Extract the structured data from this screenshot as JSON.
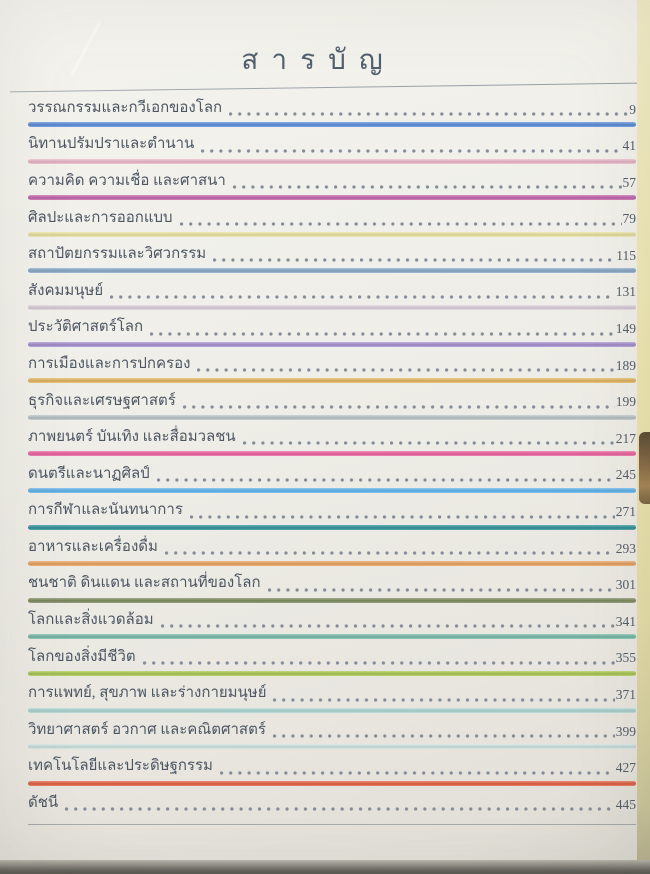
{
  "page": {
    "title": "สารบัญ",
    "entries": [
      {
        "label": "วรรณกรรมและกวีเอกของโลก",
        "page": "9",
        "color": "#5b8ede"
      },
      {
        "label": "นิทานปรัมปราและตำนาน",
        "page": "41",
        "color": "#eeb9cb"
      },
      {
        "label": "ความคิด ความเชื่อ และศาสนา",
        "page": "57",
        "color": "#c765ae"
      },
      {
        "label": "ศิลปะและการออกแบบ",
        "page": "79",
        "color": "#ece5a2"
      },
      {
        "label": "สถาปัตยกรรมและวิศวกรรม",
        "page": "115",
        "color": "#8aaacb"
      },
      {
        "label": "สังคมมนุษย์",
        "page": "131",
        "color": "#ded2dc"
      },
      {
        "label": "ประวัติศาสตร์โลก",
        "page": "149",
        "color": "#a891d3"
      },
      {
        "label": "การเมืองและการปกครอง",
        "page": "189",
        "color": "#e7b75f"
      },
      {
        "label": "ธุรกิจและเศรษฐศาสตร์",
        "page": "199",
        "color": "#bcc5c9"
      },
      {
        "label": "ภาพยนตร์ บันเทิง และสื่อมวลชน",
        "page": "217",
        "color": "#ef639f"
      },
      {
        "label": "ดนตรีและนาฏศิลป์",
        "page": "245",
        "color": "#61b5ef"
      },
      {
        "label": "การกีฬาและนันทนาการ",
        "page": "271",
        "color": "#2e939c"
      },
      {
        "label": "อาหารและเครื่องดื่ม",
        "page": "293",
        "color": "#eca360"
      },
      {
        "label": "ชนชาติ ดินแดน และสถานที่ของโลก",
        "page": "301",
        "color": "#7f8c5f"
      },
      {
        "label": "โลกและสิ่งแวดล้อม",
        "page": "341",
        "color": "#76bca9"
      },
      {
        "label": "โลกของสิ่งมีชีวิต",
        "page": "355",
        "color": "#abc94f"
      },
      {
        "label": "การแพทย์, สุขภาพ และร่างกายมนุษย์",
        "page": "371",
        "color": "#aed7d2"
      },
      {
        "label": "วิทยาศาสตร์ อวกาศ และคณิตศาสตร์",
        "page": "399",
        "color": "#cee4e0"
      },
      {
        "label": "เทคโนโลยีและประดิษฐกรรม",
        "page": "427",
        "color": "#e66140"
      },
      {
        "label": "ดัชนี",
        "page": "445",
        "color": "#9aa0a3",
        "thin": true
      }
    ]
  }
}
